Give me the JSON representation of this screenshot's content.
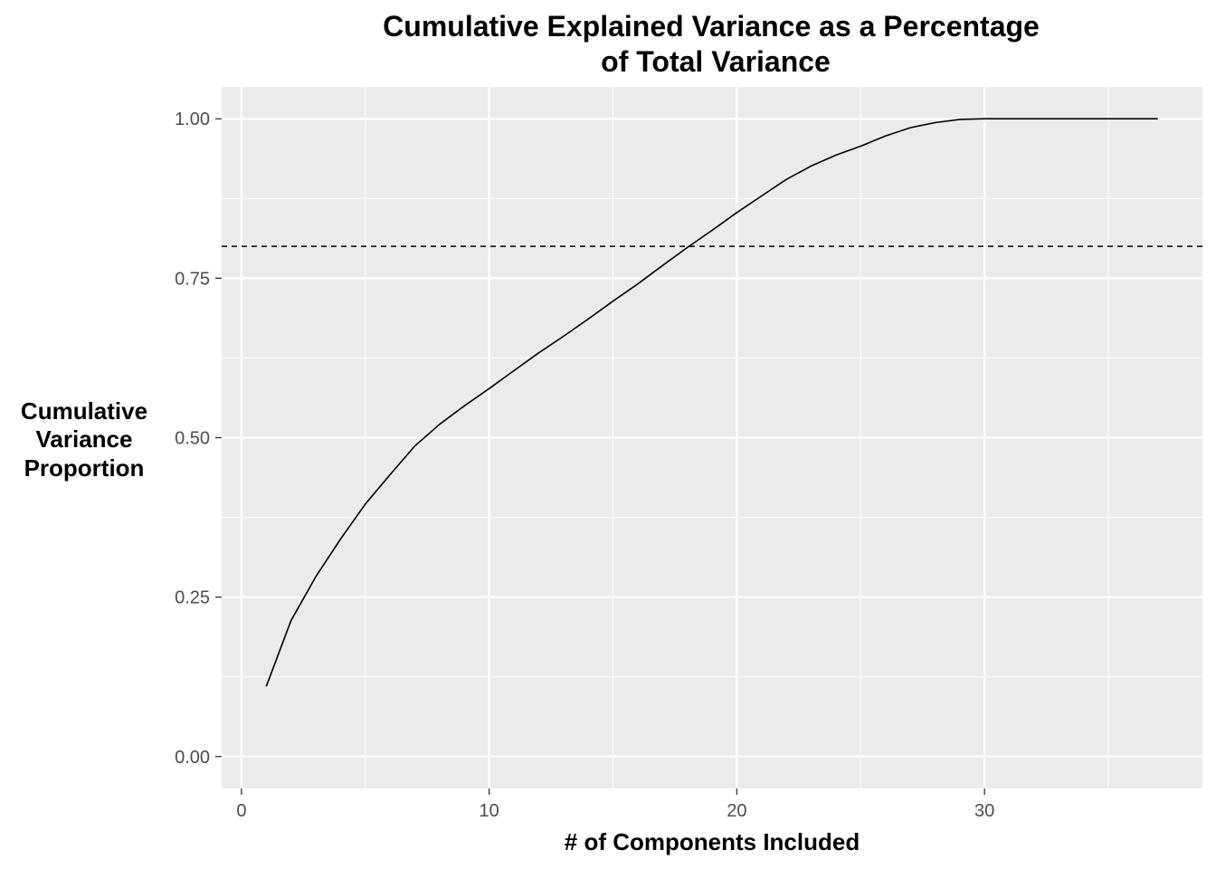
{
  "chart_data": {
    "type": "line",
    "title_lines": [
      "Cumulative Explained Variance as a Percentage",
      "of Total Variance"
    ],
    "xlabel": "# of Components Included",
    "ylabel_lines": [
      "Cumulative",
      "Variance",
      "Proportion"
    ],
    "xlim": [
      -0.8,
      38.8
    ],
    "ylim": [
      -0.05,
      1.05
    ],
    "x_ticks": [
      0,
      10,
      20,
      30
    ],
    "x_tick_labels": [
      "0",
      "10",
      "20",
      "30"
    ],
    "y_ticks": [
      0,
      0.25,
      0.5,
      0.75,
      1
    ],
    "y_tick_labels": [
      "0.00",
      "0.25",
      "0.50",
      "0.75",
      "1.00"
    ],
    "grid": true,
    "reference_line": {
      "y": 0.8,
      "style": "dashed"
    },
    "series": [
      {
        "color": "#000000",
        "x": [
          1,
          2,
          3,
          4,
          5,
          6,
          7,
          8,
          9,
          10,
          11,
          12,
          13,
          14,
          15,
          16,
          17,
          18,
          19,
          20,
          21,
          22,
          23,
          24,
          25,
          26,
          27,
          28,
          29,
          30,
          31,
          32,
          33,
          34,
          35,
          36,
          37
        ],
        "y": [
          0.11,
          0.213,
          0.282,
          0.341,
          0.396,
          0.442,
          0.487,
          0.521,
          0.55,
          0.577,
          0.605,
          0.633,
          0.659,
          0.686,
          0.714,
          0.741,
          0.77,
          0.798,
          0.825,
          0.853,
          0.879,
          0.905,
          0.926,
          0.943,
          0.957,
          0.973,
          0.986,
          0.994,
          0.999,
          1.0,
          1.0,
          1.0,
          1.0,
          1.0,
          1.0,
          1.0,
          1.0
        ]
      }
    ]
  }
}
